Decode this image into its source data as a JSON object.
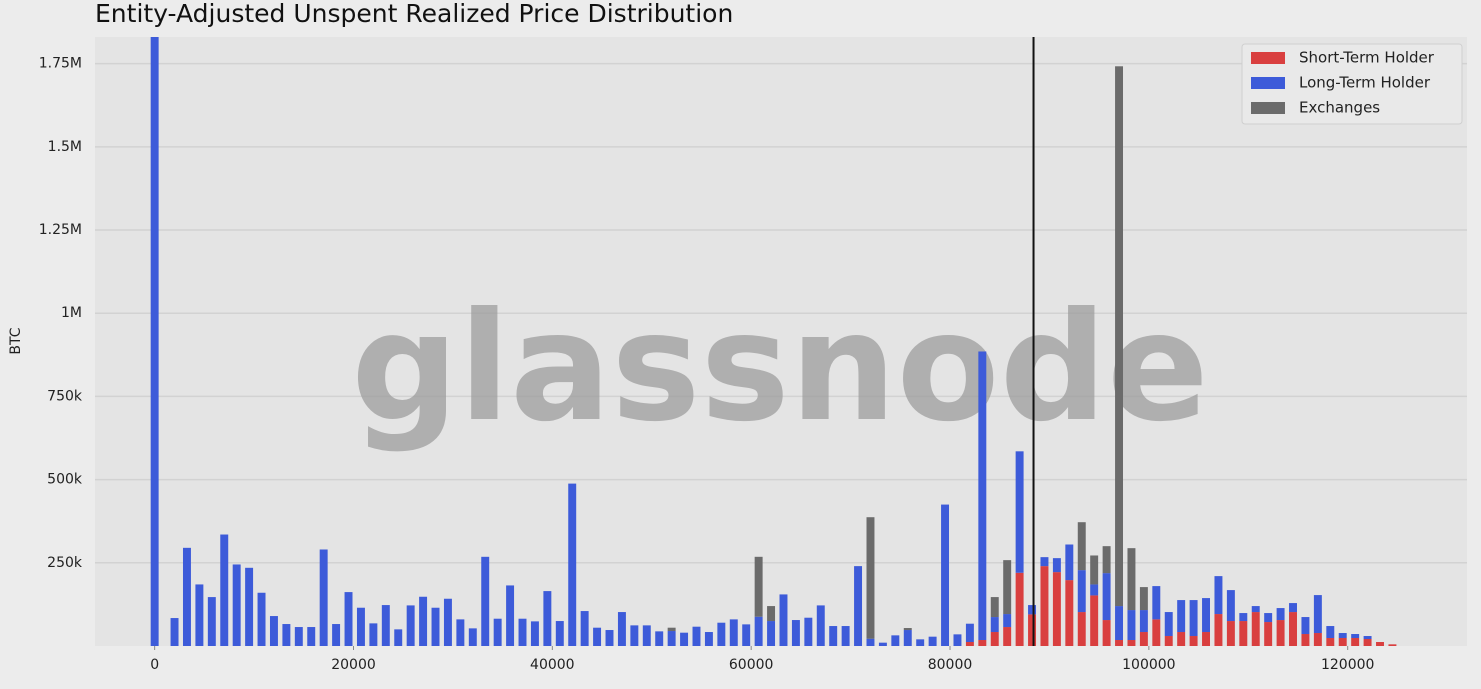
{
  "chart_data": {
    "type": "bar",
    "stacked": true,
    "title": "Entity-Adjusted Unspent Realized Price Distribution",
    "y_label": "BTC",
    "watermark": "glassnode",
    "legend": "upper right",
    "grid": true,
    "marker_x": 88400,
    "xlim": [
      -6000,
      132000
    ],
    "xticks": [
      0,
      20000,
      40000,
      60000,
      80000,
      100000,
      120000
    ],
    "ylim": [
      0,
      1830000
    ],
    "yticks": [
      {
        "value": 250000,
        "label": "250k"
      },
      {
        "value": 500000,
        "label": "500k"
      },
      {
        "value": 750000,
        "label": "750k"
      },
      {
        "value": 1000000,
        "label": "1M"
      },
      {
        "value": 1250000,
        "label": "1.25M"
      },
      {
        "value": 1500000,
        "label": "1.5M"
      },
      {
        "value": 1750000,
        "label": "1.75M"
      }
    ],
    "x": [
      0,
      2000,
      3250,
      4500,
      5750,
      7000,
      8250,
      9500,
      10750,
      12000,
      13250,
      14500,
      15750,
      17000,
      18250,
      19500,
      20750,
      22000,
      23250,
      24500,
      25750,
      27000,
      28250,
      29500,
      30750,
      32000,
      33250,
      34500,
      35750,
      37000,
      38250,
      39500,
      40750,
      42000,
      43250,
      44500,
      45750,
      47000,
      48250,
      49500,
      50750,
      52000,
      53250,
      54500,
      55750,
      57000,
      58250,
      59500,
      60750,
      62000,
      63250,
      64500,
      65750,
      67000,
      68250,
      69500,
      70750,
      72000,
      73250,
      74500,
      75750,
      77000,
      78250,
      79500,
      80750,
      82000,
      83250,
      84500,
      85750,
      87000,
      88250,
      89500,
      90750,
      92000,
      93250,
      94500,
      95750,
      97000,
      98250,
      99500,
      100750,
      102000,
      103250,
      104500,
      105750,
      107000,
      108250,
      109500,
      110750,
      112000,
      113250,
      114500,
      115750,
      117000,
      118250,
      119500,
      120750,
      122000,
      123250,
      124500
    ],
    "series": [
      {
        "name": "Short-Term Holder",
        "color": "#d93f3f",
        "values": [
          0,
          0,
          0,
          0,
          0,
          0,
          0,
          0,
          0,
          0,
          0,
          0,
          0,
          0,
          0,
          0,
          0,
          0,
          0,
          0,
          0,
          0,
          0,
          0,
          0,
          0,
          0,
          0,
          0,
          0,
          0,
          0,
          0,
          0,
          0,
          0,
          0,
          0,
          0,
          0,
          0,
          0,
          0,
          0,
          0,
          0,
          0,
          0,
          0,
          0,
          0,
          0,
          0,
          0,
          0,
          0,
          0,
          0,
          0,
          0,
          0,
          0,
          0,
          0,
          0,
          12000,
          18000,
          42000,
          57000,
          220000,
          95000,
          240000,
          222000,
          198000,
          102000,
          152000,
          78000,
          18000,
          18000,
          42000,
          80000,
          30000,
          42000,
          30000,
          42000,
          96000,
          75000,
          75000,
          102000,
          72000,
          78000,
          102000,
          36000,
          39000,
          24000,
          24000,
          24000,
          21000,
          12000,
          5000
        ]
      },
      {
        "name": "Long-Term Holder",
        "color": "#3d5bd9",
        "values": [
          1830000,
          84000,
          295000,
          185000,
          147000,
          335000,
          245000,
          235000,
          160000,
          90000,
          66000,
          57000,
          57000,
          290000,
          66000,
          162000,
          115000,
          68000,
          123000,
          50000,
          122000,
          148000,
          115000,
          142000,
          80000,
          53000,
          268000,
          82000,
          182000,
          82000,
          74000,
          165000,
          75000,
          488000,
          105000,
          55000,
          48000,
          102000,
          62000,
          62000,
          44000,
          45000,
          40000,
          58000,
          42000,
          70000,
          80000,
          65000,
          88000,
          75000,
          155000,
          78000,
          85000,
          122000,
          60000,
          60000,
          240000,
          22000,
          10000,
          32000,
          48000,
          20000,
          28000,
          425000,
          35000,
          55000,
          867000,
          45000,
          39000,
          365000,
          28000,
          27000,
          42000,
          107000,
          126000,
          33000,
          141000,
          102000,
          90000,
          66000,
          100000,
          72000,
          96000,
          108000,
          102000,
          114000,
          93000,
          24000,
          18000,
          27000,
          36000,
          27000,
          51000,
          114000,
          36000,
          15000,
          12000,
          9000,
          0,
          0
        ]
      },
      {
        "name": "Exchanges",
        "color": "#6b6b6b",
        "values": [
          0,
          0,
          0,
          0,
          0,
          0,
          0,
          0,
          0,
          0,
          0,
          0,
          0,
          0,
          0,
          0,
          0,
          0,
          0,
          0,
          0,
          0,
          0,
          0,
          0,
          0,
          0,
          0,
          0,
          0,
          0,
          0,
          0,
          0,
          0,
          0,
          0,
          0,
          0,
          0,
          0,
          10000,
          0,
          0,
          0,
          0,
          0,
          0,
          180000,
          45000,
          0,
          0,
          0,
          0,
          0,
          0,
          0,
          365000,
          0,
          0,
          6000,
          0,
          0,
          0,
          0,
          0,
          0,
          60000,
          162000,
          0,
          0,
          0,
          0,
          0,
          144000,
          87000,
          81000,
          1622000,
          186000,
          69000,
          0,
          0,
          0,
          0,
          0,
          0,
          0,
          0,
          0,
          0,
          0,
          0,
          0,
          0,
          0,
          0,
          0,
          0,
          0,
          0
        ]
      }
    ]
  }
}
